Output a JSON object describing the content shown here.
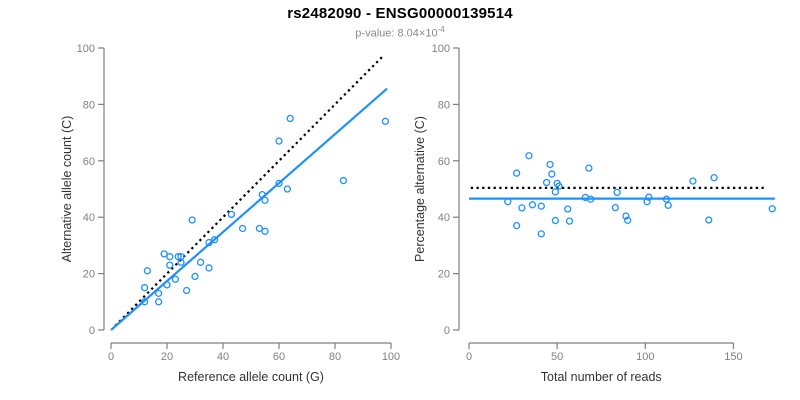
{
  "header": {
    "title": "rs2482090 - ENSG00000139514",
    "subtitle_prefix": "p-value: 8.04×10",
    "subtitle_exponent": "-4"
  },
  "colors": {
    "accent_blue": "#1E90FF",
    "identity_black": "#000000",
    "axis_gray": "#7f7f7f",
    "tick_label_gray": "#808080",
    "axis_label_color": "#333333",
    "subtitle_gray": "#8a8a8a",
    "title_color": "#000000",
    "background": "#ffffff"
  },
  "chart_data": [
    {
      "type": "scatter",
      "name": "allele-counts-scatter",
      "xlabel": "Reference allele count (G)",
      "ylabel": "Alternative allele count (C)",
      "xlim": [
        0,
        100
      ],
      "ylim": [
        0,
        100
      ],
      "xticks": [
        0,
        20,
        40,
        60,
        80,
        100
      ],
      "yticks": [
        0,
        20,
        40,
        60,
        80,
        100
      ],
      "grid": false,
      "legend": "none",
      "points": [
        [
          98,
          74
        ],
        [
          64,
          75
        ],
        [
          60,
          67
        ],
        [
          83,
          53
        ],
        [
          63,
          50
        ],
        [
          60,
          52
        ],
        [
          54,
          48
        ],
        [
          55,
          46
        ],
        [
          43,
          41
        ],
        [
          47,
          36
        ],
        [
          53,
          36
        ],
        [
          55,
          35
        ],
        [
          37,
          32
        ],
        [
          35,
          31
        ],
        [
          29,
          39
        ],
        [
          19,
          27
        ],
        [
          21,
          26
        ],
        [
          24,
          26
        ],
        [
          25,
          26
        ],
        [
          25,
          24
        ],
        [
          32,
          24
        ],
        [
          35,
          22
        ],
        [
          13,
          21
        ],
        [
          30,
          19
        ],
        [
          20,
          16
        ],
        [
          23,
          18
        ],
        [
          21,
          23
        ],
        [
          12,
          15
        ],
        [
          17,
          13
        ],
        [
          27,
          14
        ],
        [
          12,
          10
        ],
        [
          17,
          10
        ]
      ],
      "lines": [
        {
          "name": "identity-line",
          "style": "dotted",
          "color": "#000000",
          "from": [
            1.5,
            1.5
          ],
          "to": [
            97,
            97
          ]
        },
        {
          "name": "fit-line",
          "style": "solid",
          "color": "#1E90FF",
          "from": [
            0,
            0
          ],
          "to": [
            98.6,
            85.6
          ]
        }
      ]
    },
    {
      "type": "scatter",
      "name": "percentage-vs-reads-scatter",
      "xlabel": "Total number of reads",
      "ylabel": "Percentage alternative (C)",
      "xlim": [
        0,
        173
      ],
      "ylim": [
        0,
        100
      ],
      "xticks": [
        0,
        50,
        100,
        150
      ],
      "yticks": [
        0,
        20,
        40,
        60,
        80,
        100
      ],
      "grid": false,
      "legend": "none",
      "points": [
        [
          172,
          43.0
        ],
        [
          139,
          54.0
        ],
        [
          127,
          52.8
        ],
        [
          136,
          39.0
        ],
        [
          113,
          44.2
        ],
        [
          112,
          46.4
        ],
        [
          102,
          47.1
        ],
        [
          101,
          45.5
        ],
        [
          84,
          48.8
        ],
        [
          83,
          43.4
        ],
        [
          89,
          40.4
        ],
        [
          90,
          38.9
        ],
        [
          69,
          46.4
        ],
        [
          66,
          47.0
        ],
        [
          68,
          57.4
        ],
        [
          46,
          58.7
        ],
        [
          47,
          55.3
        ],
        [
          50,
          52.0
        ],
        [
          51,
          51.0
        ],
        [
          49,
          49.0
        ],
        [
          56,
          42.9
        ],
        [
          57,
          38.6
        ],
        [
          34,
          61.8
        ],
        [
          49,
          38.8
        ],
        [
          36,
          44.4
        ],
        [
          41,
          43.9
        ],
        [
          44,
          52.3
        ],
        [
          27,
          55.6
        ],
        [
          30,
          43.3
        ],
        [
          41,
          34.1
        ],
        [
          22,
          45.5
        ],
        [
          27,
          37.0
        ]
      ],
      "lines": [
        {
          "name": "expected-50pct-line",
          "style": "dotted",
          "color": "#000000",
          "from": [
            1,
            50.4
          ],
          "to": [
            169,
            50.4
          ]
        },
        {
          "name": "mean-percentage-line",
          "style": "solid",
          "color": "#1E90FF",
          "from": [
            0,
            46.6
          ],
          "to": [
            173.5,
            46.6
          ]
        }
      ]
    }
  ]
}
